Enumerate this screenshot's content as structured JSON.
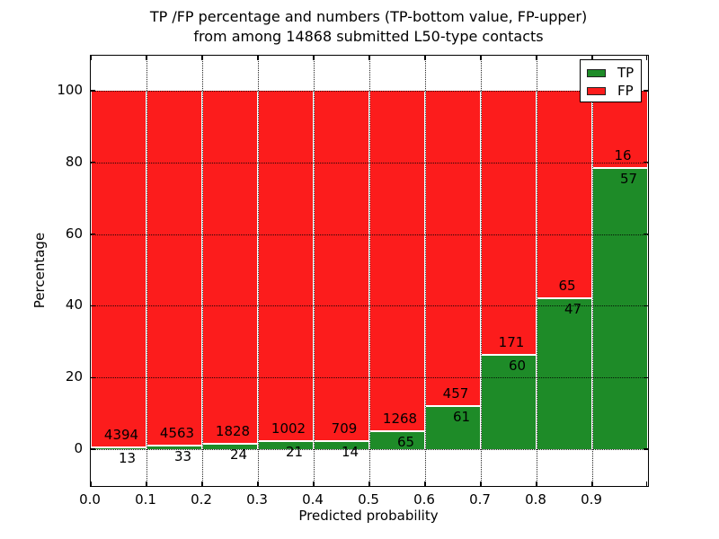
{
  "figure": {
    "title_line1": "TP /FP percentage and numbers (TP-bottom value, FP-upper)",
    "title_line2": "from among 14868 submitted L50-type contacts"
  },
  "chart_data": {
    "type": "bar",
    "stacked": true,
    "unit": "percent_of_bin",
    "title": "TP /FP percentage and numbers (TP-bottom value, FP-upper) from among 14868 submitted L50-type contacts",
    "xlabel": "Predicted probability",
    "ylabel": "Percentage",
    "xlim": [
      0.0,
      1.0
    ],
    "ylim": [
      -10,
      110
    ],
    "xticks": [
      "0.0",
      "0.1",
      "0.2",
      "0.3",
      "0.4",
      "0.5",
      "0.6",
      "0.7",
      "0.8",
      "0.9"
    ],
    "yticks": [
      "0",
      "20",
      "40",
      "60",
      "80",
      "100"
    ],
    "total_contacts": 14868,
    "bin_width": 0.1,
    "grid": {
      "style": "dotted",
      "color": "#000000",
      "over_bars": true
    },
    "legend_position": "upper right",
    "series": [
      {
        "name": "TP",
        "color": "#1e8b28"
      },
      {
        "name": "FP",
        "color": "#fc1c1c"
      }
    ],
    "bins": [
      {
        "range": "0.0-0.1",
        "tp": 13,
        "fp": 4394
      },
      {
        "range": "0.1-0.2",
        "tp": 33,
        "fp": 4563
      },
      {
        "range": "0.2-0.3",
        "tp": 24,
        "fp": 1828
      },
      {
        "range": "0.3-0.4",
        "tp": 21,
        "fp": 1002
      },
      {
        "range": "0.4-0.5",
        "tp": 14,
        "fp": 709
      },
      {
        "range": "0.5-0.6",
        "tp": 65,
        "fp": 1268
      },
      {
        "range": "0.6-0.7",
        "tp": 61,
        "fp": 457
      },
      {
        "range": "0.7-0.8",
        "tp": 60,
        "fp": 171
      },
      {
        "range": "0.8-0.9",
        "tp": 47,
        "fp": 65
      },
      {
        "range": "0.9-1.0",
        "tp": 57,
        "fp": 16
      }
    ]
  }
}
